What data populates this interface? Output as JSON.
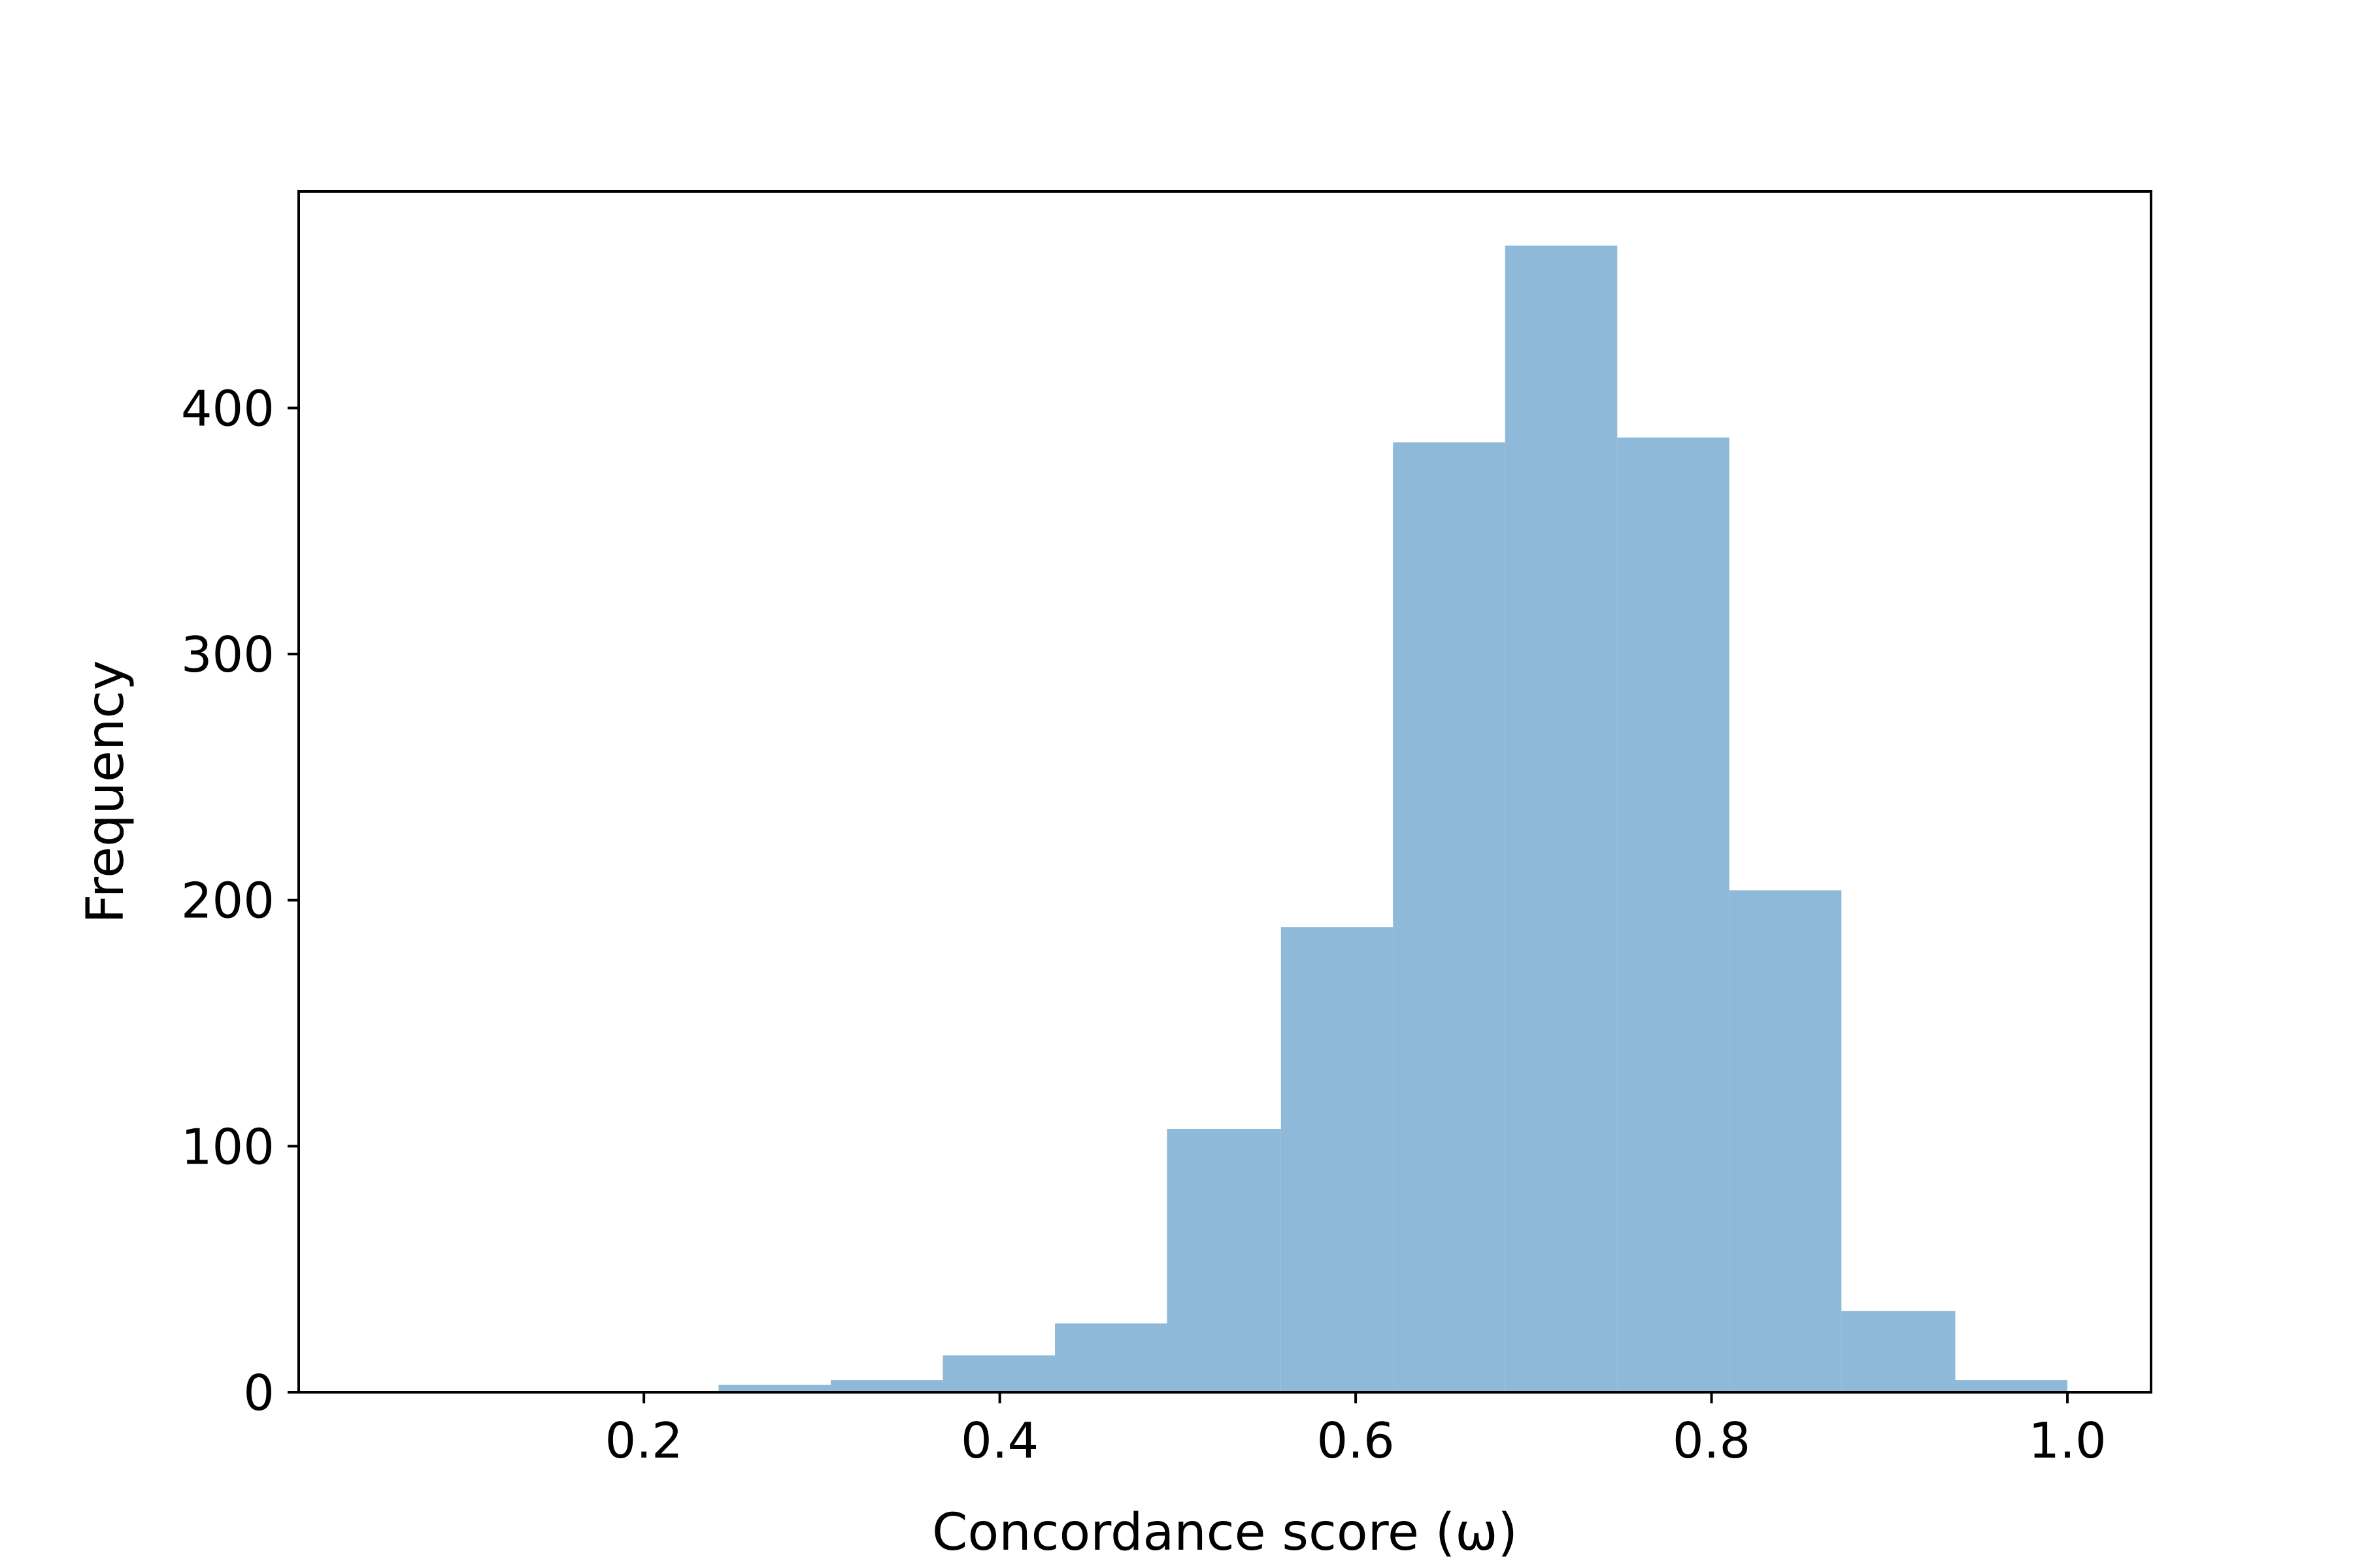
{
  "chart_data": {
    "type": "bar",
    "histogram": true,
    "bins": [
      {
        "x0": 0.053,
        "x1": 0.116,
        "count": 0
      },
      {
        "x0": 0.116,
        "x1": 0.179,
        "count": 0
      },
      {
        "x0": 0.179,
        "x1": 0.242,
        "count": 0
      },
      {
        "x0": 0.242,
        "x1": 0.305,
        "count": 3
      },
      {
        "x0": 0.305,
        "x1": 0.368,
        "count": 5
      },
      {
        "x0": 0.368,
        "x1": 0.431,
        "count": 15
      },
      {
        "x0": 0.431,
        "x1": 0.494,
        "count": 28
      },
      {
        "x0": 0.494,
        "x1": 0.558,
        "count": 107
      },
      {
        "x0": 0.558,
        "x1": 0.621,
        "count": 189
      },
      {
        "x0": 0.621,
        "x1": 0.684,
        "count": 386
      },
      {
        "x0": 0.684,
        "x1": 0.747,
        "count": 466
      },
      {
        "x0": 0.747,
        "x1": 0.81,
        "count": 388
      },
      {
        "x0": 0.81,
        "x1": 0.873,
        "count": 204
      },
      {
        "x0": 0.873,
        "x1": 0.937,
        "count": 33
      },
      {
        "x0": 0.937,
        "x1": 1.0,
        "count": 5
      }
    ],
    "xlabel": "Concordance score (ω)",
    "ylabel": "Frequency",
    "xlim": [
      0.006,
      1.047
    ],
    "ylim": [
      0,
      488
    ],
    "xticks": [
      0.2,
      0.4,
      0.6,
      0.8,
      1.0
    ],
    "xtick_labels": [
      "0.2",
      "0.4",
      "0.6",
      "0.8",
      "1.0"
    ],
    "yticks": [
      0,
      100,
      200,
      300,
      400
    ],
    "ytick_labels": [
      "0",
      "100",
      "200",
      "300",
      "400"
    ],
    "bar_color": "#8fb9d9",
    "grid": false,
    "legend": false
  }
}
